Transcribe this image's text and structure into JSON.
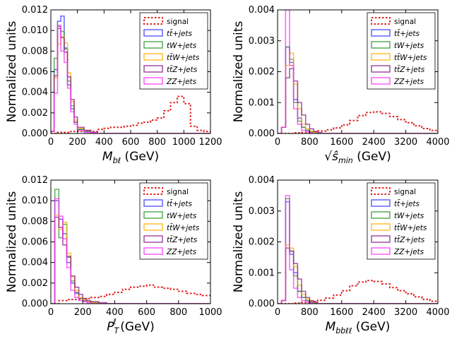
{
  "chart_data": [
    {
      "type": "line",
      "xlabel": "M_bℓ (GeV)",
      "ylabel": "Normalized units",
      "xlim": [
        0,
        1200
      ],
      "ylim": [
        0,
        0.012
      ],
      "xticks": [
        "0",
        "200",
        "400",
        "600",
        "800",
        "1000",
        "1200"
      ],
      "yticks": [
        "0.000",
        "0.002",
        "0.004",
        "0.006",
        "0.008",
        "0.010",
        "0.012"
      ],
      "legend_position": "top-right",
      "series": [
        {
          "name": "signal",
          "color": "#e02020",
          "style": "dotted",
          "x": [
            0,
            50,
            100,
            150,
            200,
            250,
            300,
            350,
            400,
            450,
            500,
            550,
            600,
            650,
            700,
            750,
            800,
            850,
            900,
            950,
            1000,
            1050,
            1100,
            1150,
            1200
          ],
          "values": [
            0,
            0.0001,
            0.0001,
            0.0002,
            0.0002,
            0.0003,
            0.0002,
            0.0004,
            0.0005,
            0.0006,
            0.0006,
            0.0007,
            0.0008,
            0.001,
            0.0011,
            0.0013,
            0.0015,
            0.0022,
            0.003,
            0.0036,
            0.0029,
            0.0007,
            0.0003,
            0.0002,
            0.0002
          ]
        },
        {
          "name": "tt̄+jets",
          "color": "#3b3bff",
          "x": [
            0,
            25,
            50,
            75,
            100,
            125,
            150,
            175,
            200,
            250,
            300,
            350
          ],
          "values": [
            0.0002,
            0.0062,
            0.0109,
            0.0114,
            0.0083,
            0.0047,
            0.0024,
            0.0011,
            0.0004,
            0.0002,
            0.0001,
            0
          ]
        },
        {
          "name": "tW+jets",
          "color": "#2e9a2e",
          "x": [
            0,
            25,
            50,
            75,
            100,
            125,
            150,
            175,
            200,
            250,
            300,
            350
          ],
          "values": [
            0.0002,
            0.0073,
            0.0104,
            0.0099,
            0.0082,
            0.0051,
            0.0027,
            0.0011,
            0.0004,
            0.0002,
            0.0001,
            0
          ]
        },
        {
          "name": "tt̄W+jets",
          "color": "#ffb000",
          "x": [
            0,
            25,
            50,
            75,
            100,
            125,
            150,
            175,
            200,
            250,
            300,
            350
          ],
          "values": [
            0.0002,
            0.0054,
            0.0087,
            0.0094,
            0.0088,
            0.0059,
            0.0031,
            0.0013,
            0.0005,
            0.0003,
            0.0001,
            0
          ]
        },
        {
          "name": "tt̄Z+jets",
          "color": "#882288",
          "x": [
            0,
            25,
            50,
            75,
            100,
            125,
            150,
            175,
            200,
            250,
            300,
            350
          ],
          "values": [
            0.0002,
            0.0056,
            0.0102,
            0.0093,
            0.0079,
            0.0055,
            0.0033,
            0.0016,
            0.0006,
            0.0003,
            0.0001,
            0
          ]
        },
        {
          "name": "ZZ+jets",
          "color": "#ff33ff",
          "x": [
            0,
            25,
            50,
            75,
            100,
            125,
            150,
            175,
            200,
            250,
            300,
            350
          ],
          "values": [
            0.0002,
            0.0039,
            0.0105,
            0.008,
            0.0069,
            0.0044,
            0.0021,
            0.0009,
            0.0003,
            0.0001,
            0.0001,
            0
          ]
        }
      ]
    },
    {
      "type": "line",
      "xlabel": "√ŝ_min (GeV)",
      "ylabel": "Normalized units",
      "xlim": [
        0,
        4000
      ],
      "ylim": [
        0,
        0.004
      ],
      "xticks": [
        "0",
        "800",
        "1600",
        "2400",
        "3200",
        "4000"
      ],
      "yticks": [
        "0.000",
        "0.001",
        "0.002",
        "0.003",
        "0.004"
      ],
      "legend_position": "top-right",
      "series": [
        {
          "name": "signal",
          "color": "#e02020",
          "style": "dotted",
          "x": [
            0,
            200,
            400,
            600,
            800,
            1000,
            1200,
            1400,
            1600,
            1800,
            2000,
            2200,
            2400,
            2600,
            2800,
            3000,
            3200,
            3400,
            3600,
            3800,
            4000
          ],
          "values": [
            0,
            0,
            2e-05,
            3e-05,
            5e-05,
            8e-05,
            0.00012,
            0.00018,
            0.00028,
            0.00042,
            0.00058,
            0.00068,
            0.0007,
            0.00065,
            0.00055,
            0.00045,
            0.00035,
            0.00025,
            0.00016,
            0.0001,
            5e-05
          ]
        },
        {
          "name": "tt̄+jets",
          "color": "#3b3bff",
          "x": [
            0,
            100,
            200,
            300,
            400,
            500,
            600,
            700,
            800,
            900,
            1000,
            1100,
            1200
          ],
          "values": [
            0,
            0.0002,
            0.0028,
            0.0023,
            0.0011,
            0.0005,
            0.0002,
            0.0001,
            5e-05,
            2e-05,
            0,
            0,
            0
          ]
        },
        {
          "name": "tW+jets",
          "color": "#2e9a2e",
          "x": [
            0,
            100,
            200,
            300,
            400,
            500,
            600,
            700,
            800,
            900,
            1000,
            1100,
            1200
          ],
          "values": [
            0,
            0.0002,
            0.0028,
            0.0024,
            0.001,
            0.0004,
            0.0002,
            0.0001,
            5e-05,
            2e-05,
            0,
            0,
            0
          ]
        },
        {
          "name": "tt̄W+jets",
          "color": "#ffb000",
          "x": [
            0,
            100,
            200,
            300,
            400,
            500,
            600,
            700,
            800,
            900,
            1000,
            1100,
            1200
          ],
          "values": [
            0,
            0.0002,
            0.0022,
            0.0026,
            0.0016,
            0.0008,
            0.0003,
            0.00015,
            7e-05,
            3e-05,
            0,
            0,
            0
          ]
        },
        {
          "name": "tt̄Z+jets",
          "color": "#882288",
          "x": [
            0,
            100,
            200,
            300,
            400,
            500,
            600,
            700,
            800,
            900,
            1000,
            1100,
            1200
          ],
          "values": [
            0,
            0.0002,
            0.0018,
            0.0021,
            0.0017,
            0.001,
            0.0006,
            0.0003,
            0.00015,
            7e-05,
            3e-05,
            0,
            0
          ]
        },
        {
          "name": "ZZ+jets",
          "color": "#ff33ff",
          "x": [
            0,
            100,
            200,
            300,
            400,
            500,
            600,
            700,
            800,
            900,
            1000,
            1100,
            1200
          ],
          "values": [
            0,
            0.0002,
            0.004,
            0.0022,
            0.0008,
            0.0003,
            0.0001,
            5e-05,
            2e-05,
            0,
            0,
            0,
            0
          ]
        }
      ]
    },
    {
      "type": "line",
      "xlabel": "P_T^ℓ (GeV)",
      "ylabel": "Normalized units",
      "xlim": [
        0,
        1000
      ],
      "ylim": [
        0,
        0.012
      ],
      "xticks": [
        "0",
        "200",
        "400",
        "600",
        "800",
        "1000"
      ],
      "yticks": [
        "0.000",
        "0.002",
        "0.004",
        "0.006",
        "0.008",
        "0.010",
        "0.012"
      ],
      "legend_position": "top-right",
      "series": [
        {
          "name": "signal",
          "color": "#e02020",
          "style": "dotted",
          "x": [
            0,
            50,
            100,
            150,
            200,
            250,
            300,
            350,
            400,
            450,
            500,
            550,
            600,
            650,
            700,
            750,
            800,
            850,
            900,
            950,
            1000
          ],
          "values": [
            0,
            0.0003,
            0.0004,
            0.0004,
            0.0005,
            0.0006,
            0.0007,
            0.0009,
            0.0011,
            0.0014,
            0.0016,
            0.0017,
            0.0018,
            0.0016,
            0.0015,
            0.0014,
            0.0012,
            0.001,
            0.0009,
            0.0008,
            0.0006
          ]
        },
        {
          "name": "tt̄+jets",
          "color": "#3b3bff",
          "x": [
            0,
            25,
            50,
            75,
            100,
            125,
            150,
            175,
            200,
            225,
            250,
            300,
            350
          ],
          "values": [
            0,
            0.01,
            0.0082,
            0.0068,
            0.004,
            0.002,
            0.001,
            0.0005,
            0.0003,
            0.0002,
            0.0001,
            0,
            0
          ]
        },
        {
          "name": "tW+jets",
          "color": "#2e9a2e",
          "x": [
            0,
            25,
            50,
            75,
            100,
            125,
            150,
            175,
            200,
            225,
            250,
            300,
            350
          ],
          "values": [
            0,
            0.0111,
            0.0064,
            0.0077,
            0.0045,
            0.0022,
            0.0011,
            0.0005,
            0.0003,
            0.0002,
            0.0001,
            0,
            0
          ]
        },
        {
          "name": "tt̄W+jets",
          "color": "#ffb000",
          "x": [
            0,
            25,
            50,
            75,
            100,
            125,
            150,
            175,
            200,
            225,
            250,
            300,
            350
          ],
          "values": [
            0,
            0.0086,
            0.0072,
            0.0079,
            0.0049,
            0.0026,
            0.0013,
            0.0006,
            0.0004,
            0.0002,
            0.0001,
            0,
            0
          ]
        },
        {
          "name": "tt̄Z+jets",
          "color": "#882288",
          "x": [
            0,
            25,
            50,
            75,
            100,
            125,
            150,
            175,
            200,
            225,
            250,
            300,
            350
          ],
          "values": [
            0,
            0.0084,
            0.0074,
            0.0057,
            0.0046,
            0.0027,
            0.0016,
            0.0009,
            0.0005,
            0.0003,
            0.0002,
            0.0001,
            0
          ]
        },
        {
          "name": "ZZ+jets",
          "color": "#ff33ff",
          "x": [
            0,
            25,
            50,
            75,
            100,
            125,
            150,
            175,
            200,
            225,
            250,
            300,
            350
          ],
          "values": [
            0,
            0.0102,
            0.0085,
            0.0063,
            0.0035,
            0.0013,
            0.0006,
            0.0003,
            0.0002,
            0.0001,
            0,
            0,
            0
          ]
        }
      ]
    },
    {
      "type": "line",
      "xlabel": "M_bbℓℓ (GeV)",
      "ylabel": "Normalized units",
      "xlim": [
        0,
        4000
      ],
      "ylim": [
        0,
        0.004
      ],
      "xticks": [
        "0",
        "800",
        "1600",
        "2400",
        "3200",
        "4000"
      ],
      "yticks": [
        "0.000",
        "0.001",
        "0.002",
        "0.003",
        "0.004"
      ],
      "legend_position": "top-right",
      "series": [
        {
          "name": "signal",
          "color": "#e02020",
          "style": "dotted",
          "x": [
            0,
            200,
            400,
            600,
            800,
            1000,
            1200,
            1400,
            1600,
            1800,
            2000,
            2200,
            2400,
            2600,
            2800,
            3000,
            3200,
            3400,
            3600,
            3800,
            4000
          ],
          "values": [
            0,
            0,
            2e-05,
            4e-05,
            7e-05,
            0.00011,
            0.00018,
            0.00028,
            0.00042,
            0.00058,
            0.0007,
            0.00075,
            0.00072,
            0.00064,
            0.00052,
            0.00042,
            0.00032,
            0.00022,
            0.00014,
            8e-05,
            4e-05
          ]
        },
        {
          "name": "tt̄+jets",
          "color": "#3b3bff",
          "x": [
            0,
            100,
            200,
            300,
            400,
            500,
            600,
            700,
            800,
            900,
            1000,
            1100,
            1200
          ],
          "values": [
            0,
            0.0001,
            0.0033,
            0.0016,
            0.001,
            0.0004,
            0.0002,
            0.0001,
            5e-05,
            2e-05,
            0,
            0,
            0
          ]
        },
        {
          "name": "tW+jets",
          "color": "#2e9a2e",
          "x": [
            0,
            100,
            200,
            300,
            400,
            500,
            600,
            700,
            800,
            900,
            1000,
            1100,
            1200
          ],
          "values": [
            0,
            0.0001,
            0.0034,
            0.0017,
            0.0009,
            0.0004,
            0.0002,
            0.0001,
            5e-05,
            2e-05,
            0,
            0,
            0
          ]
        },
        {
          "name": "tt̄W+jets",
          "color": "#ffb000",
          "x": [
            0,
            100,
            200,
            300,
            400,
            500,
            600,
            700,
            800,
            900,
            1000,
            1100,
            1200
          ],
          "values": [
            0,
            0.0001,
            0.0019,
            0.0018,
            0.0012,
            0.0006,
            0.0003,
            0.00015,
            8e-05,
            4e-05,
            0,
            0,
            0
          ]
        },
        {
          "name": "tt̄Z+jets",
          "color": "#882288",
          "x": [
            0,
            100,
            200,
            300,
            400,
            500,
            600,
            700,
            800,
            900,
            1000,
            1100,
            1200
          ],
          "values": [
            0,
            0.0001,
            0.0018,
            0.0017,
            0.0013,
            0.0008,
            0.0004,
            0.0002,
            0.0001,
            5e-05,
            0,
            0,
            0
          ]
        },
        {
          "name": "ZZ+jets",
          "color": "#ff33ff",
          "x": [
            0,
            100,
            200,
            300,
            400,
            500,
            600,
            700,
            800,
            900,
            1000,
            1100,
            1200
          ],
          "values": [
            0,
            0.0001,
            0.0035,
            0.0011,
            0.0005,
            0.0002,
            0.0001,
            5e-05,
            2e-05,
            0,
            0,
            0,
            0
          ]
        }
      ]
    }
  ]
}
